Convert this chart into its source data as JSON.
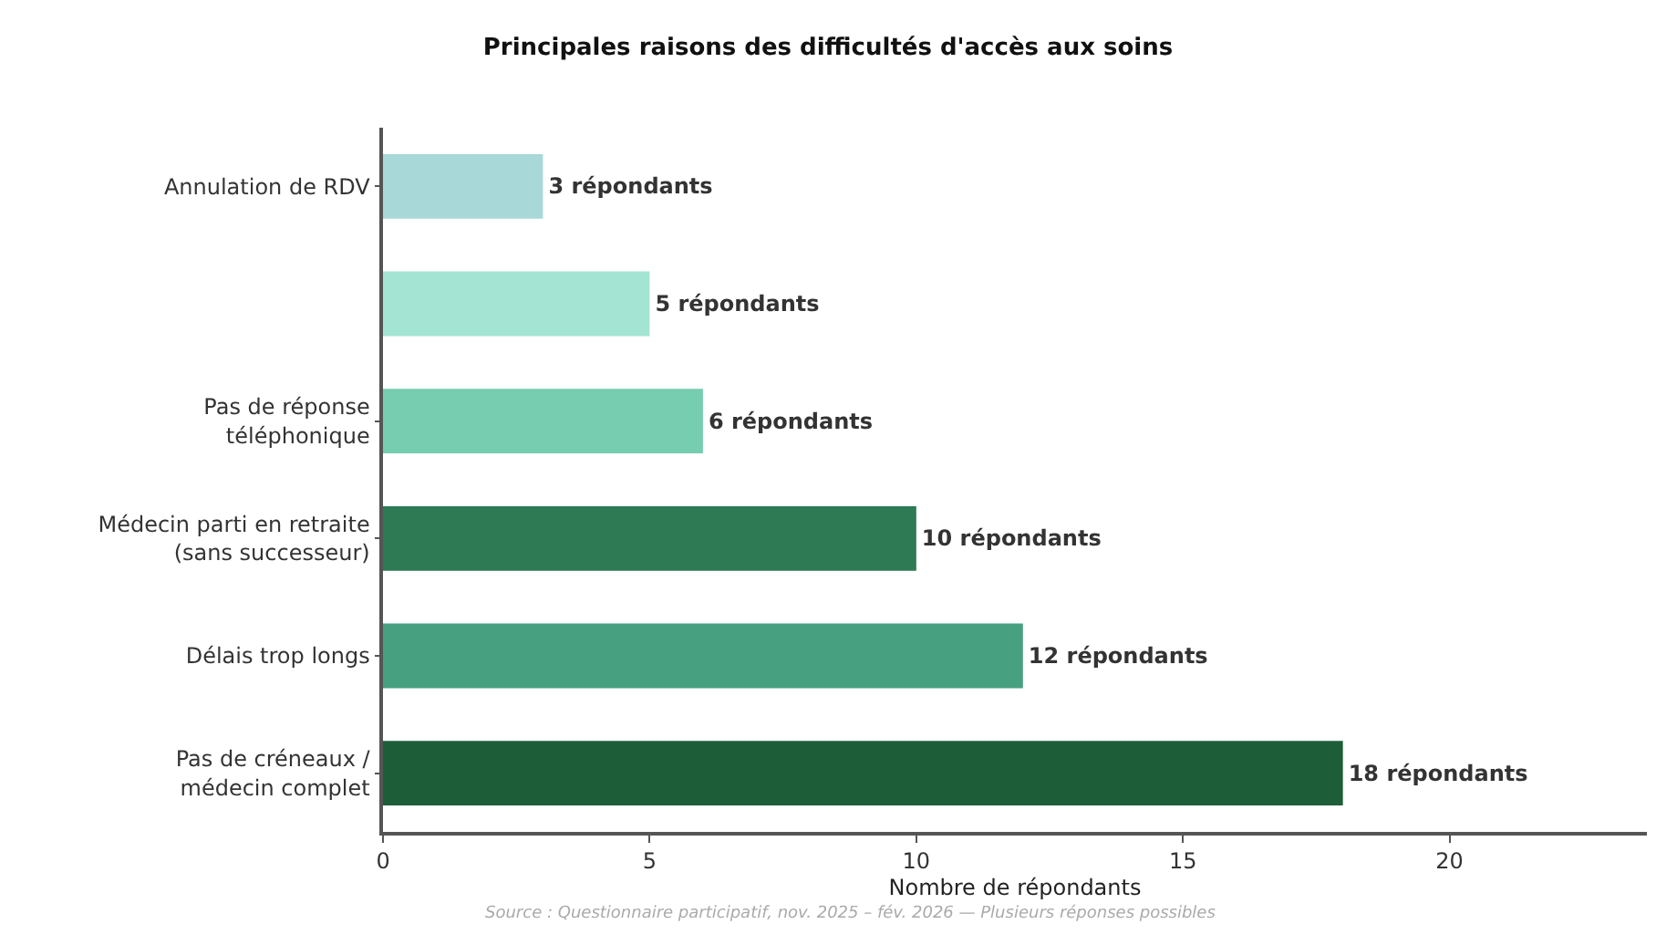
{
  "chart_data": {
    "type": "bar",
    "orientation": "horizontal",
    "title": "Principales raisons des difficultés d'accès aux soins",
    "xlabel": "Nombre de répondants",
    "categories": [
      "Annulation de RDV",
      null,
      "Pas de réponse\ntéléphonique",
      "Médecin parti en retraite\n(sans successeur)",
      "Délais trop longs",
      "Pas de créneaux /\nmédecin complet"
    ],
    "values": [
      3,
      5,
      6,
      10,
      12,
      18
    ],
    "colors": [
      "#a8d8d8",
      "#a3e4d3",
      "#76cdb0",
      "#2d7a55",
      "#47a07f",
      "#1d5e38"
    ],
    "value_labels": [
      "3 répondants",
      "5 répondants",
      "6 répondants",
      "10 répondants",
      "12 répondants",
      "18 répondants"
    ],
    "xlim": [
      0,
      23.7
    ],
    "xticks": [
      0,
      5,
      10,
      15,
      20
    ],
    "legend": false,
    "annotations": [
      "Source : Questionnaire participatif, nov. 2025 – fév. 2026 — Plusieurs réponses possibles"
    ]
  }
}
